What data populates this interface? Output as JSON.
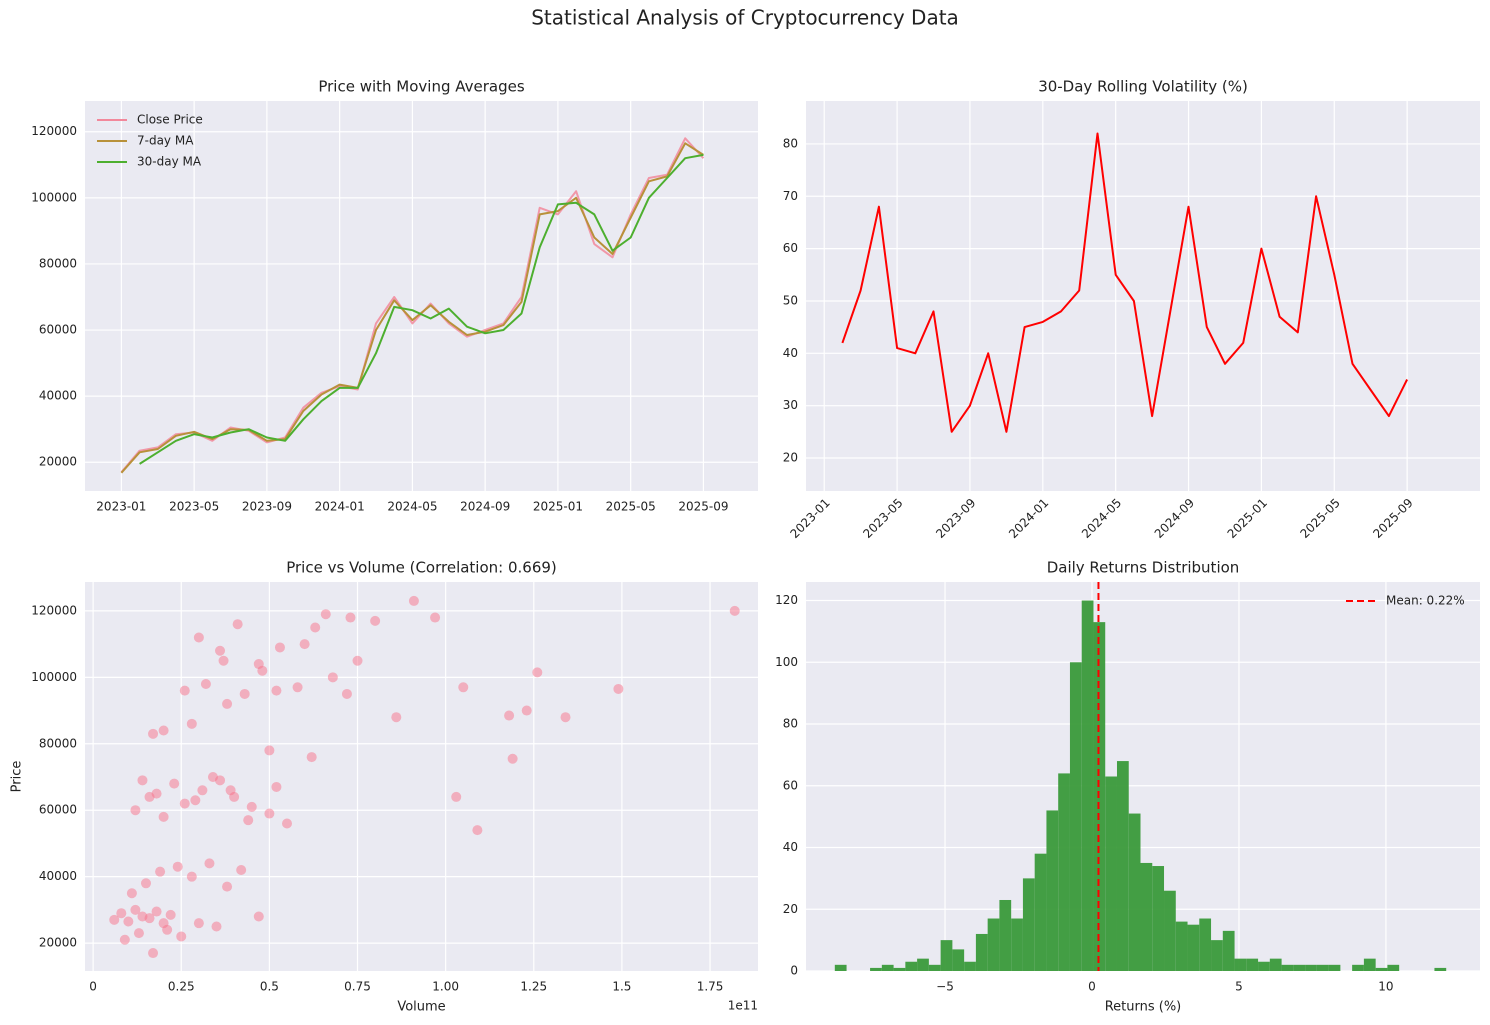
{
  "title": "Statistical Analysis of Cryptocurrency Data",
  "chart_data": [
    {
      "type": "line",
      "title": "Price with Moving Averages",
      "x": [
        "2023-01",
        "2023-02",
        "2023-03",
        "2023-04",
        "2023-05",
        "2023-06",
        "2023-07",
        "2023-08",
        "2023-09",
        "2023-10",
        "2023-11",
        "2023-12",
        "2024-01",
        "2024-02",
        "2024-03",
        "2024-04",
        "2024-05",
        "2024-06",
        "2024-07",
        "2024-08",
        "2024-09",
        "2024-10",
        "2024-11",
        "2024-12",
        "2025-01",
        "2025-02",
        "2025-03",
        "2025-04",
        "2025-05",
        "2025-06",
        "2025-07",
        "2025-08",
        "2025-09"
      ],
      "series": [
        {
          "name": "Close Price",
          "color": "#f2889b",
          "values": [
            17000,
            23500,
            24500,
            28500,
            29000,
            26500,
            30500,
            29500,
            26000,
            27500,
            36500,
            41000,
            43000,
            42000,
            62000,
            70000,
            62000,
            68000,
            62000,
            58000,
            60000,
            62000,
            70000,
            97000,
            95000,
            102000,
            86000,
            82000,
            95000,
            106000,
            107000,
            118000,
            112000
          ]
        },
        {
          "name": "7-day MA",
          "color": "#b8913a",
          "values": [
            16800,
            23000,
            24000,
            28000,
            29200,
            27000,
            30000,
            29800,
            26500,
            27000,
            35500,
            40500,
            43500,
            42500,
            60000,
            69000,
            63000,
            67500,
            62500,
            58500,
            59500,
            61500,
            68500,
            95000,
            96000,
            100000,
            88000,
            83000,
            94000,
            105000,
            106500,
            116500,
            113000
          ]
        },
        {
          "name": "30-day MA",
          "color": "#4daf2f",
          "values": [
            null,
            19500,
            23000,
            26500,
            28500,
            27500,
            29000,
            30000,
            27500,
            26500,
            33000,
            38500,
            42500,
            42500,
            53000,
            67000,
            66000,
            63500,
            66500,
            61000,
            59000,
            60000,
            65000,
            85000,
            98000,
            98500,
            95000,
            84000,
            88000,
            100000,
            106000,
            112000,
            113000
          ]
        }
      ],
      "xlim": [
        "2022-11",
        "2025-12"
      ],
      "xticks": [
        "2023-01",
        "2023-05",
        "2023-09",
        "2024-01",
        "2024-05",
        "2024-09",
        "2025-01",
        "2025-05",
        "2025-09"
      ],
      "ylim": [
        11300,
        129300
      ],
      "yticks": [
        20000,
        40000,
        60000,
        80000,
        100000,
        120000
      ],
      "grid": true,
      "legend": "upper-left"
    },
    {
      "type": "line",
      "title": "30-Day Rolling Volatility (%)",
      "x": [
        "2023-01",
        "2023-02",
        "2023-03",
        "2023-04",
        "2023-05",
        "2023-06",
        "2023-07",
        "2023-08",
        "2023-09",
        "2023-10",
        "2023-11",
        "2023-12",
        "2024-01",
        "2024-02",
        "2024-03",
        "2024-04",
        "2024-05",
        "2024-06",
        "2024-07",
        "2024-08",
        "2024-09",
        "2024-10",
        "2024-11",
        "2024-12",
        "2025-01",
        "2025-02",
        "2025-03",
        "2025-04",
        "2025-05",
        "2025-06",
        "2025-07",
        "2025-08",
        "2025-09"
      ],
      "series": [
        {
          "color": "#ff0000",
          "values": [
            null,
            42,
            52,
            68,
            41,
            40,
            48,
            25,
            30,
            40,
            25,
            45,
            46,
            48,
            52,
            82,
            55,
            50,
            28,
            48,
            68,
            45,
            38,
            42,
            60,
            47,
            44,
            70,
            55,
            38,
            33,
            28,
            35
          ]
        }
      ],
      "xlim": [
        "2022-12",
        "2026-01"
      ],
      "xticks": [
        "2023-01",
        "2023-05",
        "2023-09",
        "2024-01",
        "2024-05",
        "2024-09",
        "2025-01",
        "2025-05",
        "2025-09"
      ],
      "xtick_rotation": 45,
      "ylim": [
        13.7,
        88.2
      ],
      "yticks": [
        20,
        30,
        40,
        50,
        60,
        70,
        80
      ],
      "grid": true
    },
    {
      "type": "scatter",
      "title": "Price vs Volume (Correlation: 0.669)",
      "x_label": "Volume",
      "y_label": "Price",
      "x_offset_label": "1e11",
      "color": "#f77189",
      "x": [
        0.06,
        0.08,
        0.1,
        0.12,
        0.14,
        0.16,
        0.18,
        0.2,
        0.22,
        0.09,
        0.13,
        0.17,
        0.21,
        0.25,
        0.3,
        0.35,
        0.11,
        0.15,
        0.19,
        0.24,
        0.28,
        0.33,
        0.38,
        0.42,
        0.47,
        0.12,
        0.16,
        0.2,
        0.26,
        0.31,
        0.36,
        0.4,
        0.45,
        0.52,
        0.14,
        0.18,
        0.23,
        0.29,
        0.34,
        0.39,
        0.44,
        0.5,
        0.55,
        0.2,
        0.26,
        0.32,
        0.37,
        0.43,
        0.48,
        0.53,
        0.58,
        0.63,
        0.68,
        0.73,
        0.3,
        0.36,
        0.41,
        0.47,
        0.52,
        0.6,
        0.66,
        0.72,
        0.8,
        0.86,
        0.17,
        0.28,
        0.38,
        0.5,
        0.62,
        0.75,
        0.91,
        0.97,
        1.05,
        1.09,
        1.03,
        1.18,
        1.19,
        1.23,
        1.26,
        1.34,
        1.49,
        1.82
      ],
      "values": [
        27000,
        29000,
        26500,
        30000,
        28000,
        27500,
        29500,
        26000,
        28500,
        21000,
        23000,
        17000,
        24000,
        22000,
        26000,
        25000,
        35000,
        38000,
        41500,
        43000,
        40000,
        44000,
        37000,
        42000,
        28000,
        60000,
        64000,
        58000,
        62000,
        66000,
        69000,
        64000,
        61000,
        67000,
        69000,
        65000,
        68000,
        63000,
        70000,
        66000,
        57000,
        59000,
        56000,
        84000,
        96000,
        98000,
        105000,
        95000,
        102000,
        109000,
        97000,
        115000,
        100000,
        118000,
        112000,
        108000,
        116000,
        104000,
        96000,
        110000,
        119000,
        95000,
        117000,
        88000,
        83000,
        86000,
        92000,
        78000,
        76000,
        105000,
        123000,
        118000,
        97000,
        54000,
        64000,
        88500,
        75500,
        90000,
        101500,
        88000,
        96500,
        120000
      ],
      "xlim": [
        -0.023,
        1.886
      ],
      "xticks": [
        0,
        0.25,
        0.5,
        0.75,
        {
          "value": 1,
          "label": "1.00"
        },
        1.25,
        1.5,
        1.75
      ],
      "ylim": [
        11600,
        128700
      ],
      "yticks": [
        20000,
        40000,
        60000,
        80000,
        100000,
        120000
      ],
      "grid": true
    },
    {
      "type": "histogram",
      "title": "Daily Returns Distribution",
      "x_label": "Returns (%)",
      "color": "#3a9a3a",
      "bins": [
        -8.75,
        -8.35,
        -7.95,
        -7.55,
        -7.15,
        -6.75,
        -6.35,
        -5.95,
        -5.55,
        -5.15,
        -4.75,
        -4.35,
        -3.95,
        -3.55,
        -3.15,
        -2.75,
        -2.35,
        -1.95,
        -1.55,
        -1.15,
        -0.75,
        -0.35,
        0.05,
        0.45,
        0.85,
        1.25,
        1.65,
        2.05,
        2.45,
        2.85,
        3.25,
        3.65,
        4.05,
        4.45,
        4.85,
        5.25,
        5.65,
        6.05,
        6.45,
        6.85,
        7.25,
        7.65,
        8.05,
        8.45,
        8.85,
        9.25,
        9.65,
        10.05,
        10.45,
        10.85,
        11.25,
        11.65,
        12.05
      ],
      "values": [
        2,
        0,
        0,
        1,
        2,
        1,
        3,
        4,
        2,
        10,
        7,
        3,
        12,
        17,
        23,
        17,
        30,
        38,
        52,
        64,
        100,
        120,
        113,
        63,
        68,
        51,
        35,
        34,
        26,
        16,
        15,
        17,
        10,
        13,
        4,
        4,
        3,
        4,
        2,
        2,
        2,
        2,
        2,
        0,
        2,
        4,
        1,
        2,
        0,
        0,
        0,
        1
      ],
      "mean": 0.22,
      "mean_label": "Mean: 0.22%",
      "mean_color": "#ff0000",
      "xlim": [
        -9.73,
        13.2
      ],
      "xticks": [
        {
          "value": -5,
          "label": "−5"
        },
        0,
        5,
        10
      ],
      "ylim": [
        0,
        126
      ],
      "yticks": [
        0,
        20,
        40,
        60,
        80,
        100,
        120
      ],
      "grid": true,
      "legend": "upper-right"
    }
  ]
}
